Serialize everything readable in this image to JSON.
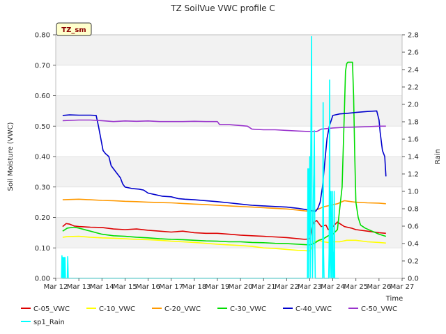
{
  "chart_data": {
    "type": "line",
    "title": "TZ SoilVue VWC profile C",
    "site_label": "TZ_sm",
    "xlabel": "Time",
    "ylabel": "Soil Moisture (VWC)",
    "y2label": "Rain",
    "xlim": [
      12,
      27
    ],
    "ylim": [
      0,
      0.8
    ],
    "y2lim": [
      0,
      2.8
    ],
    "x_ticks": [
      12,
      13,
      14,
      15,
      16,
      17,
      18,
      19,
      20,
      21,
      22,
      23,
      24,
      25,
      26,
      27
    ],
    "x_tick_labels": [
      "Mar 12",
      "Mar 13",
      "Mar 14",
      "Mar 15",
      "Mar 16",
      "Mar 17",
      "Mar 18",
      "Mar 19",
      "Mar 20",
      "Mar 21",
      "Mar 22",
      "Mar 23",
      "Mar 24",
      "Mar 25",
      "Mar 26",
      "Mar 27"
    ],
    "y_ticks": [
      0,
      0.1,
      0.2,
      0.3,
      0.4,
      0.5,
      0.6,
      0.7,
      0.8
    ],
    "y_tick_labels": [
      "0.00",
      "0.10",
      "0.20",
      "0.30",
      "0.40",
      "0.50",
      "0.60",
      "0.70",
      "0.80"
    ],
    "y2_ticks": [
      0,
      0.2,
      0.4,
      0.6,
      0.8,
      1.0,
      1.2,
      1.4,
      1.6,
      1.8,
      2.0,
      2.2,
      2.4,
      2.6,
      2.8
    ],
    "y2_tick_labels": [
      "0.0",
      "0.2",
      "0.4",
      "0.6",
      "0.8",
      "1.0",
      "1.2",
      "1.4",
      "1.6",
      "1.8",
      "2.0",
      "2.2",
      "2.4",
      "2.6",
      "2.8"
    ],
    "grid": true,
    "legend_position": "bottom",
    "series": [
      {
        "name": "C-05_VWC",
        "color": "#dd0000",
        "axis": "left",
        "x": [
          12.3,
          12.45,
          12.6,
          12.8,
          13.0,
          13.5,
          14.0,
          14.5,
          15.0,
          15.5,
          16.0,
          16.5,
          17.0,
          17.5,
          18.0,
          18.5,
          19.0,
          19.5,
          20.0,
          20.5,
          21.0,
          21.5,
          22.0,
          22.5,
          22.8,
          23.0,
          23.1,
          23.2,
          23.3,
          23.4,
          23.5,
          23.7,
          23.8,
          24.0,
          24.2,
          24.3,
          24.5,
          24.8,
          25.0,
          25.5,
          26.0,
          26.3
        ],
        "y": [
          0.17,
          0.18,
          0.178,
          0.172,
          0.17,
          0.168,
          0.167,
          0.162,
          0.16,
          0.162,
          0.158,
          0.155,
          0.152,
          0.155,
          0.15,
          0.148,
          0.148,
          0.145,
          0.142,
          0.14,
          0.138,
          0.136,
          0.134,
          0.13,
          0.128,
          0.13,
          0.17,
          0.185,
          0.19,
          0.18,
          0.17,
          0.175,
          0.16,
          0.17,
          0.185,
          0.18,
          0.17,
          0.165,
          0.16,
          0.155,
          0.15,
          0.148
        ]
      },
      {
        "name": "C-10_VWC",
        "color": "#ffff00",
        "axis": "left",
        "x": [
          12.3,
          12.5,
          13.0,
          13.5,
          14.0,
          14.5,
          15.0,
          15.5,
          16.0,
          16.5,
          17.0,
          17.5,
          18.0,
          18.5,
          19.0,
          19.5,
          20.0,
          20.5,
          21.0,
          21.5,
          22.0,
          22.5,
          23.0,
          23.2,
          23.4,
          23.6,
          23.8,
          24.0,
          24.3,
          24.6,
          25.0,
          25.5,
          26.0,
          26.3
        ],
        "y": [
          0.135,
          0.137,
          0.138,
          0.135,
          0.133,
          0.132,
          0.13,
          0.128,
          0.127,
          0.125,
          0.122,
          0.12,
          0.118,
          0.115,
          0.112,
          0.11,
          0.108,
          0.105,
          0.1,
          0.098,
          0.095,
          0.092,
          0.09,
          0.12,
          0.125,
          0.12,
          0.118,
          0.12,
          0.12,
          0.125,
          0.125,
          0.12,
          0.118,
          0.116
        ]
      },
      {
        "name": "C-20_VWC",
        "color": "#ff9900",
        "axis": "left",
        "x": [
          12.3,
          13.0,
          13.5,
          14.0,
          14.5,
          15.0,
          15.5,
          16.0,
          16.5,
          17.0,
          17.5,
          18.0,
          18.5,
          19.0,
          19.5,
          20.0,
          20.5,
          21.0,
          21.5,
          22.0,
          22.5,
          23.0,
          23.3,
          23.6,
          23.9,
          24.2,
          24.5,
          24.8,
          25.0,
          25.5,
          26.0,
          26.3
        ],
        "y": [
          0.258,
          0.26,
          0.258,
          0.256,
          0.255,
          0.253,
          0.252,
          0.25,
          0.249,
          0.248,
          0.246,
          0.244,
          0.242,
          0.24,
          0.238,
          0.236,
          0.234,
          0.232,
          0.23,
          0.228,
          0.224,
          0.22,
          0.225,
          0.235,
          0.24,
          0.245,
          0.255,
          0.252,
          0.25,
          0.248,
          0.247,
          0.245
        ]
      },
      {
        "name": "C-30_VWC",
        "color": "#00dd00",
        "axis": "left",
        "x": [
          12.3,
          12.5,
          12.8,
          13.0,
          13.5,
          14.0,
          14.5,
          15.0,
          15.5,
          16.0,
          16.5,
          17.0,
          17.5,
          18.0,
          18.5,
          19.0,
          19.5,
          20.0,
          20.5,
          21.0,
          21.5,
          22.0,
          22.5,
          23.0,
          23.2,
          23.4,
          23.6,
          23.8,
          24.0,
          24.2,
          24.4,
          24.5,
          24.55,
          24.6,
          24.65,
          24.7,
          24.85,
          24.9,
          24.95,
          25.0,
          25.1,
          25.2,
          25.4,
          25.7,
          26.0,
          26.3
        ],
        "y": [
          0.155,
          0.165,
          0.168,
          0.165,
          0.155,
          0.145,
          0.14,
          0.138,
          0.135,
          0.133,
          0.13,
          0.128,
          0.127,
          0.125,
          0.123,
          0.122,
          0.12,
          0.12,
          0.118,
          0.117,
          0.115,
          0.114,
          0.112,
          0.11,
          0.115,
          0.125,
          0.13,
          0.14,
          0.145,
          0.16,
          0.3,
          0.55,
          0.68,
          0.705,
          0.71,
          0.71,
          0.71,
          0.6,
          0.4,
          0.25,
          0.2,
          0.175,
          0.165,
          0.155,
          0.145,
          0.138
        ]
      },
      {
        "name": "C-40_VWC",
        "color": "#0000cc",
        "axis": "left",
        "x": [
          12.3,
          12.6,
          13.0,
          13.5,
          13.75,
          13.85,
          13.95,
          14.05,
          14.15,
          14.3,
          14.4,
          14.5,
          14.6,
          14.8,
          14.9,
          15.0,
          15.3,
          15.6,
          15.8,
          16.0,
          16.3,
          16.6,
          17.0,
          17.3,
          17.6,
          18.0,
          18.5,
          19.0,
          19.5,
          20.0,
          20.5,
          21.0,
          21.5,
          22.0,
          22.5,
          22.9,
          23.1,
          23.25,
          23.35,
          23.45,
          23.55,
          23.65,
          23.75,
          23.85,
          24.0,
          24.3,
          24.6,
          25.0,
          25.5,
          25.9,
          26.0,
          26.05,
          26.15,
          26.25,
          26.3
        ],
        "y": [
          0.535,
          0.537,
          0.536,
          0.536,
          0.535,
          0.5,
          0.46,
          0.42,
          0.41,
          0.4,
          0.37,
          0.36,
          0.35,
          0.33,
          0.31,
          0.3,
          0.295,
          0.293,
          0.29,
          0.28,
          0.275,
          0.27,
          0.268,
          0.262,
          0.26,
          0.258,
          0.255,
          0.252,
          0.248,
          0.244,
          0.24,
          0.238,
          0.236,
          0.234,
          0.23,
          0.225,
          0.222,
          0.22,
          0.23,
          0.25,
          0.3,
          0.38,
          0.46,
          0.5,
          0.535,
          0.54,
          0.542,
          0.545,
          0.548,
          0.55,
          0.52,
          0.48,
          0.42,
          0.4,
          0.335
        ]
      },
      {
        "name": "C-50_VWC",
        "color": "#9933cc",
        "axis": "left",
        "x": [
          12.3,
          13.0,
          13.5,
          14.0,
          14.5,
          15.0,
          15.5,
          16.0,
          16.5,
          17.0,
          17.5,
          18.0,
          18.5,
          19.0,
          19.1,
          19.5,
          20.0,
          20.3,
          20.5,
          21.0,
          21.5,
          22.0,
          22.5,
          23.0,
          23.3,
          23.5,
          24.0,
          24.5,
          25.0,
          25.5,
          26.0,
          26.3
        ],
        "y": [
          0.518,
          0.52,
          0.52,
          0.518,
          0.515,
          0.517,
          0.516,
          0.517,
          0.515,
          0.515,
          0.515,
          0.516,
          0.515,
          0.515,
          0.505,
          0.505,
          0.502,
          0.5,
          0.49,
          0.488,
          0.488,
          0.486,
          0.484,
          0.482,
          0.482,
          0.49,
          0.494,
          0.496,
          0.497,
          0.498,
          0.5,
          0.5
        ]
      },
      {
        "name": "sp1_Rain",
        "color": "#00ffff",
        "axis": "right",
        "x": [
          12.25,
          12.27,
          12.28,
          12.3,
          12.32,
          12.33,
          12.35,
          12.37,
          12.38,
          12.4,
          12.42,
          12.5,
          12.52,
          12.54,
          12.6,
          12.62,
          12.64,
          22.9,
          22.92,
          22.94,
          22.96,
          22.98,
          23.0,
          23.02,
          23.04,
          23.06,
          23.08,
          23.1,
          23.12,
          23.14,
          23.16,
          23.18,
          23.2,
          23.22,
          23.24,
          23.26,
          23.28,
          23.3,
          23.32,
          23.34,
          23.36,
          23.38,
          23.4,
          23.42,
          23.44,
          23.46,
          23.48,
          23.5,
          23.52,
          23.54,
          23.56,
          23.58,
          23.6,
          23.62,
          23.64,
          23.66,
          23.68,
          23.7,
          23.72,
          23.74,
          23.76,
          23.78,
          23.8,
          23.82,
          23.84,
          23.86,
          23.88,
          23.9,
          23.92,
          23.94,
          23.96,
          23.98,
          24.0,
          24.02,
          24.04,
          24.06,
          24.08,
          24.1,
          24.12,
          24.14,
          24.16,
          24.18,
          24.2,
          24.22,
          24.24,
          24.26
        ],
        "y": [
          0,
          0.26,
          0,
          0.24,
          0,
          0.24,
          0,
          0.24,
          0,
          0.24,
          0,
          0,
          0.25,
          0,
          0,
          0,
          0,
          0,
          1.26,
          0,
          1.26,
          0.5,
          1.4,
          0,
          1.25,
          2.0,
          2.78,
          0.4,
          0,
          0.5,
          1.0,
          1.2,
          1.7,
          0.4,
          0,
          0,
          0,
          0,
          0,
          0,
          0,
          0,
          0,
          0,
          0,
          0,
          0,
          0,
          0,
          0,
          0,
          2.02,
          0.3,
          0,
          0,
          0,
          0,
          0,
          0,
          0,
          0,
          0,
          0,
          0,
          0.3,
          2.28,
          0,
          0.5,
          1.0,
          0,
          0.3,
          1.0,
          0,
          0.3,
          0,
          1.0,
          0,
          0,
          0,
          0,
          0,
          0,
          0,
          0,
          0,
          0
        ]
      }
    ]
  }
}
